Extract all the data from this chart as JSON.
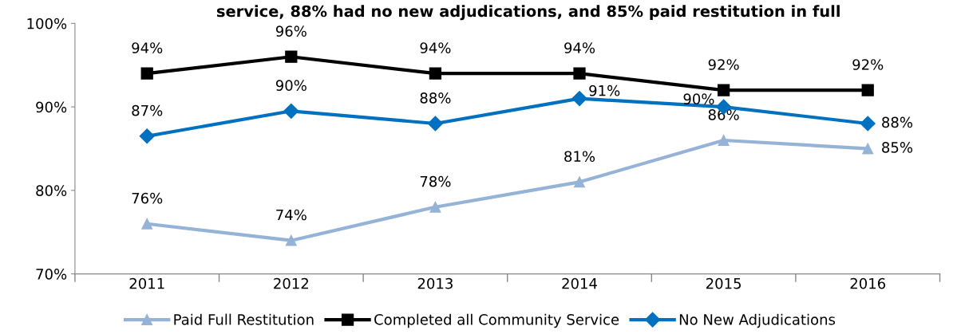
{
  "chart_data": {
    "type": "line",
    "title": "service, 88% had no new adjudications, and 85% paid restitution in full",
    "categories": [
      "2011",
      "2012",
      "2013",
      "2014",
      "2015",
      "2016"
    ],
    "series": [
      {
        "name": "Paid Full Restitution",
        "color": "#95b3d7",
        "marker": "triangle",
        "values": [
          76,
          74,
          78,
          81,
          86,
          85
        ],
        "value_labels": [
          "76%",
          "74%",
          "78%",
          "81%",
          "86%",
          "85%"
        ]
      },
      {
        "name": "Completed all Community Service",
        "color": "#000000",
        "marker": "square",
        "values": [
          94,
          96,
          94,
          94,
          92,
          92
        ],
        "value_labels": [
          "94%",
          "96%",
          "94%",
          "94%",
          "92%",
          "92%"
        ]
      },
      {
        "name": "No New Adjudications",
        "color": "#0070c0",
        "marker": "diamond",
        "values": [
          86.5,
          89.5,
          88,
          91,
          90,
          88
        ],
        "value_labels": [
          "87%",
          "90%",
          "88%",
          "91%",
          "90%",
          "88%"
        ]
      }
    ],
    "ylim": [
      70,
      100
    ],
    "yticks": [
      {
        "value": 70,
        "label": "70%"
      },
      {
        "value": 80,
        "label": "80%"
      },
      {
        "value": 90,
        "label": "90%"
      },
      {
        "value": 100,
        "label": "100%"
      }
    ],
    "grid": false,
    "legend": "bottom",
    "line_style": "solid"
  }
}
